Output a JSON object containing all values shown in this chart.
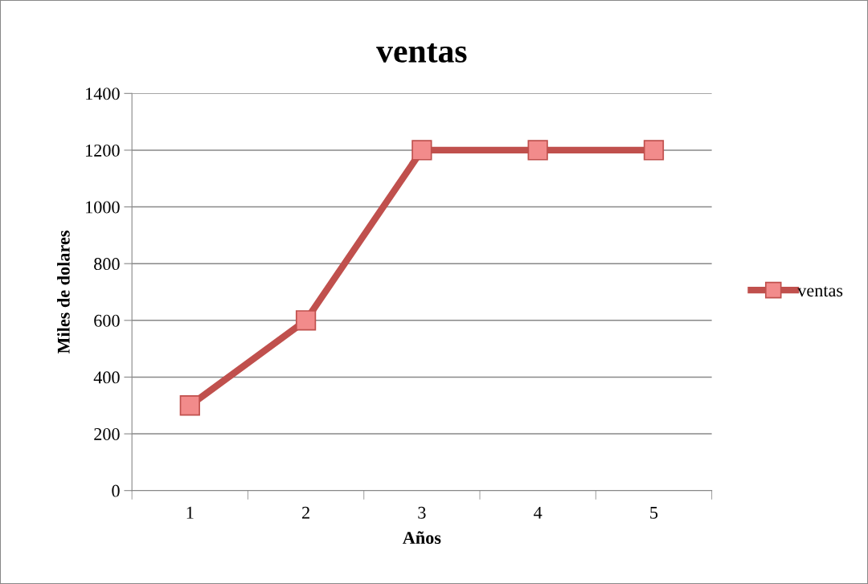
{
  "chart_data": {
    "type": "line",
    "title": "ventas",
    "xlabel": "Años",
    "ylabel": "Miles de dolares",
    "categories": [
      "1",
      "2",
      "3",
      "4",
      "5"
    ],
    "series": [
      {
        "name": "ventas",
        "color": "#c0504d",
        "values": [
          300,
          600,
          1200,
          1200,
          1200
        ]
      }
    ],
    "ylim": [
      0,
      1400
    ],
    "yticks": [
      0,
      200,
      400,
      600,
      800,
      1000,
      1200,
      1400
    ],
    "grid": "y",
    "legend": "right",
    "marker": "square",
    "line_style": "solid"
  }
}
